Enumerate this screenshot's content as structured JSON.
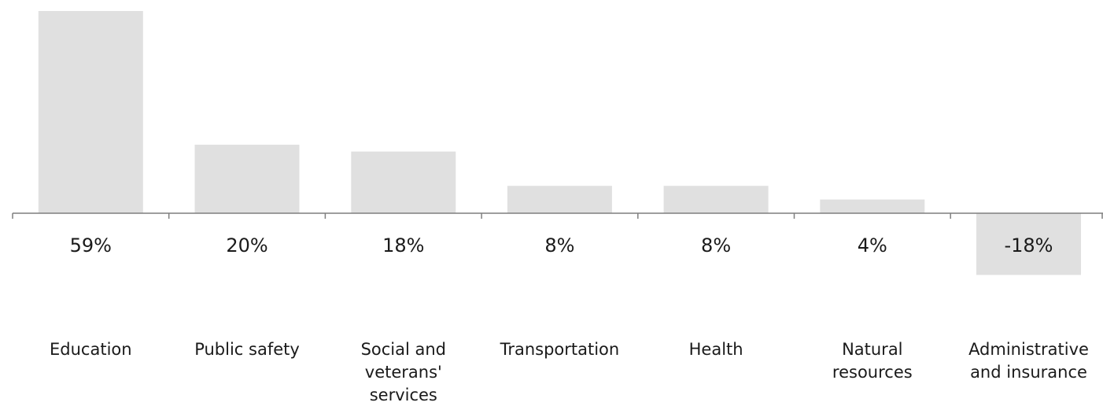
{
  "chart_data": {
    "type": "bar",
    "title": "",
    "xlabel": "",
    "ylabel": "",
    "categories": [
      [
        "Education"
      ],
      [
        "Public safety"
      ],
      [
        "Social and",
        "veterans'",
        "services"
      ],
      [
        "Transportation"
      ],
      [
        "Health"
      ],
      [
        "Natural",
        "resources"
      ],
      [
        "Administrative",
        "and insurance"
      ]
    ],
    "values": [
      59,
      20,
      18,
      8,
      8,
      4,
      -18
    ],
    "value_labels": [
      "59%",
      "20%",
      "18%",
      "8%",
      "8%",
      "4%",
      "-18%"
    ],
    "units": "%",
    "grid": false,
    "legend": "none",
    "colors": {
      "bar": "#e0e0e0",
      "axis": "#7f7f7f",
      "text": "#1a1a1a"
    }
  }
}
